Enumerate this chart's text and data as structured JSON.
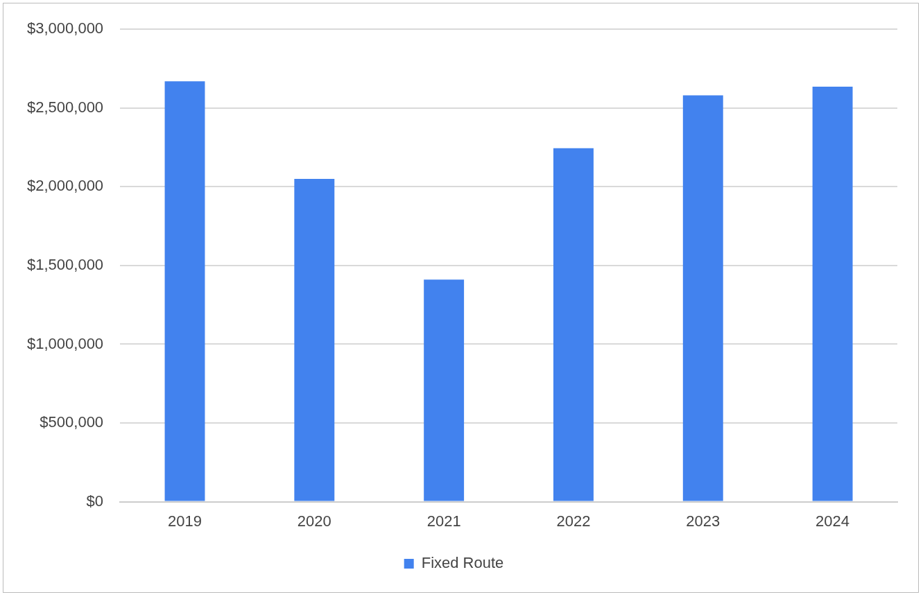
{
  "chart_data": {
    "type": "bar",
    "categories": [
      "2019",
      "2020",
      "2021",
      "2022",
      "2023",
      "2024"
    ],
    "series": [
      {
        "name": "Fixed Route",
        "color": "#4282ee",
        "values": [
          2670000,
          2050000,
          1410000,
          2245000,
          2580000,
          2635000
        ]
      }
    ],
    "ylim": [
      0,
      3000000
    ],
    "yticks": [
      {
        "value": 0,
        "label": "$0"
      },
      {
        "value": 500000,
        "label": "$500,000"
      },
      {
        "value": 1000000,
        "label": "$1,000,000"
      },
      {
        "value": 1500000,
        "label": "$1,500,000"
      },
      {
        "value": 2000000,
        "label": "$2,000,000"
      },
      {
        "value": 2500000,
        "label": "$2,500,000"
      },
      {
        "value": 3000000,
        "label": "$3,000,000"
      }
    ],
    "grid": "y",
    "legend": "bottom"
  }
}
